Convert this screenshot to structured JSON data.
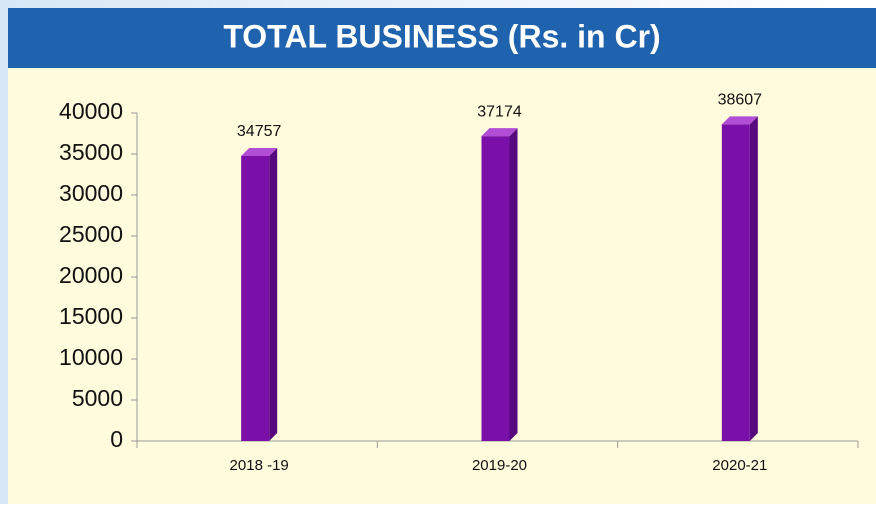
{
  "chart_data": {
    "type": "bar",
    "title": "TOTAL BUSINESS (Rs. in Cr)",
    "categories": [
      "2018 -19",
      "2019-20",
      "2020-21"
    ],
    "values": [
      34757,
      37174,
      38607
    ],
    "color": "#7a10a8",
    "ylim": [
      0,
      40000
    ],
    "yticks": [
      0,
      5000,
      10000,
      15000,
      20000,
      25000,
      30000,
      35000,
      40000
    ],
    "grid": false
  }
}
